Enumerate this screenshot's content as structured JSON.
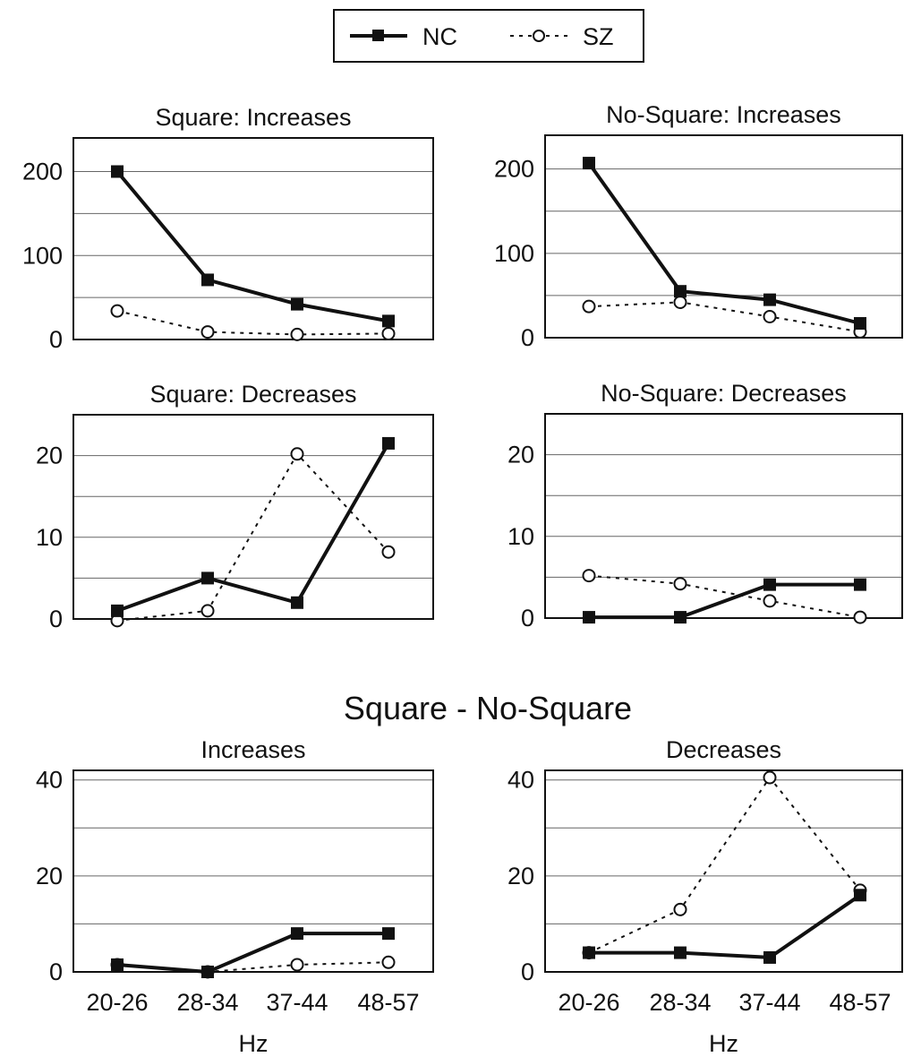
{
  "legend": {
    "items": [
      {
        "label": "NC",
        "style": "solid",
        "marker": "filled-square"
      },
      {
        "label": "SZ",
        "style": "dotted",
        "marker": "open-circle"
      }
    ]
  },
  "section_title": "Square - No-Square",
  "colors": {
    "line": "#111111",
    "grid": "#666666",
    "background": "#ffffff"
  },
  "chart_data": [
    {
      "type": "line",
      "title": "Square: Increases",
      "categories": [
        "20-26",
        "28-34",
        "37-44",
        "48-57"
      ],
      "series": [
        {
          "name": "NC",
          "values": [
            200,
            71,
            42,
            22
          ]
        },
        {
          "name": "SZ",
          "values": [
            34,
            9,
            6,
            7
          ]
        }
      ],
      "ylim": [
        0,
        240
      ],
      "yticks": [
        0,
        100,
        200
      ],
      "grid": true,
      "xlabel": "",
      "ylabel": ""
    },
    {
      "type": "line",
      "title": "No-Square: Increases",
      "categories": [
        "20-26",
        "28-34",
        "37-44",
        "48-57"
      ],
      "series": [
        {
          "name": "NC",
          "values": [
            207,
            55,
            45,
            17
          ]
        },
        {
          "name": "SZ",
          "values": [
            37,
            42,
            25,
            7
          ]
        }
      ],
      "ylim": [
        0,
        240
      ],
      "yticks": [
        0,
        100,
        200
      ],
      "grid": true,
      "xlabel": "",
      "ylabel": ""
    },
    {
      "type": "line",
      "title": "Square: Decreases",
      "categories": [
        "20-26",
        "28-34",
        "37-44",
        "48-57"
      ],
      "series": [
        {
          "name": "NC",
          "values": [
            1.0,
            5.0,
            2.0,
            21.5
          ]
        },
        {
          "name": "SZ",
          "values": [
            -0.2,
            1.0,
            20.2,
            8.2
          ]
        }
      ],
      "ylim": [
        0,
        25
      ],
      "yticks": [
        0,
        10,
        20
      ],
      "grid": true,
      "xlabel": "",
      "ylabel": ""
    },
    {
      "type": "line",
      "title": "No-Square: Decreases",
      "categories": [
        "20-26",
        "28-34",
        "37-44",
        "48-57"
      ],
      "series": [
        {
          "name": "NC",
          "values": [
            0.1,
            0.1,
            4.1,
            4.1
          ]
        },
        {
          "name": "SZ",
          "values": [
            5.2,
            4.2,
            2.1,
            0.1
          ]
        }
      ],
      "ylim": [
        0,
        25
      ],
      "yticks": [
        0,
        10,
        20
      ],
      "grid": true,
      "xlabel": "",
      "ylabel": ""
    },
    {
      "type": "line",
      "title": "Increases",
      "categories": [
        "20-26",
        "28-34",
        "37-44",
        "48-57"
      ],
      "series": [
        {
          "name": "NC",
          "values": [
            1.5,
            0.0,
            8.0,
            8.0
          ]
        },
        {
          "name": "SZ",
          "values": [
            1.5,
            0.0,
            1.5,
            2.0
          ]
        }
      ],
      "ylim": [
        0,
        42
      ],
      "yticks": [
        0,
        20,
        40
      ],
      "grid": true,
      "xlabel": "Hz",
      "ylabel": ""
    },
    {
      "type": "line",
      "title": "Decreases",
      "categories": [
        "20-26",
        "28-34",
        "37-44",
        "48-57"
      ],
      "series": [
        {
          "name": "NC",
          "values": [
            4.0,
            4.0,
            3.0,
            16.0
          ]
        },
        {
          "name": "SZ",
          "values": [
            4.0,
            13.0,
            40.5,
            17.0
          ]
        }
      ],
      "ylim": [
        0,
        42
      ],
      "yticks": [
        0,
        20,
        40
      ],
      "grid": true,
      "xlabel": "Hz",
      "ylabel": ""
    }
  ]
}
